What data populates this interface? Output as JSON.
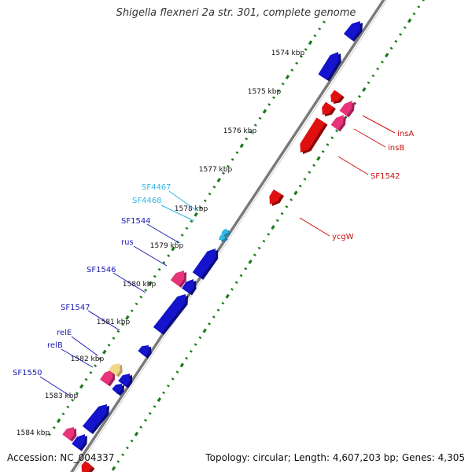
{
  "title": "Shigella flexneri 2a str. 301, complete genome",
  "footer": {
    "accession": "Accession: NC_004337",
    "topology": "Topology: circular; Length: 4,607,203 bp; Genes: 4,305"
  },
  "colors": {
    "forward_gene": "#1414cc",
    "reverse_gene": "#e01010",
    "pseudo_gene": "#e8337a",
    "other_gene": "#f0d88a",
    "light_label": "#33b5e5",
    "dark_label": "#1a1ab0",
    "red_label": "#cc1111",
    "tick": "#1a7a1a",
    "backbone": "#7a7a7a"
  },
  "ruler": [
    {
      "label": "1574 kbp"
    },
    {
      "label": "1575 kbp"
    },
    {
      "label": "1576 kbp"
    },
    {
      "label": "1577 kbp"
    },
    {
      "label": "1578 kbp"
    },
    {
      "label": "1579 kbp"
    },
    {
      "label": "1580 kbp"
    },
    {
      "label": "1581 kbp"
    },
    {
      "label": "1582 kbp"
    },
    {
      "label": "1583 kbp"
    },
    {
      "label": "1584 kbp"
    }
  ],
  "gene_labels": [
    {
      "name": "insA",
      "color": "red"
    },
    {
      "name": "insB",
      "color": "red"
    },
    {
      "name": "SF1542",
      "color": "red"
    },
    {
      "name": "ycgW",
      "color": "red"
    },
    {
      "name": "SF4467",
      "color": "light"
    },
    {
      "name": "SF4468",
      "color": "light"
    },
    {
      "name": "SF1544",
      "color": "dark"
    },
    {
      "name": "rus",
      "color": "dark"
    },
    {
      "name": "SF1546",
      "color": "dark"
    },
    {
      "name": "SF1547",
      "color": "dark"
    },
    {
      "name": "relE",
      "color": "dark"
    },
    {
      "name": "relB",
      "color": "dark"
    },
    {
      "name": "SF1550",
      "color": "dark"
    }
  ]
}
